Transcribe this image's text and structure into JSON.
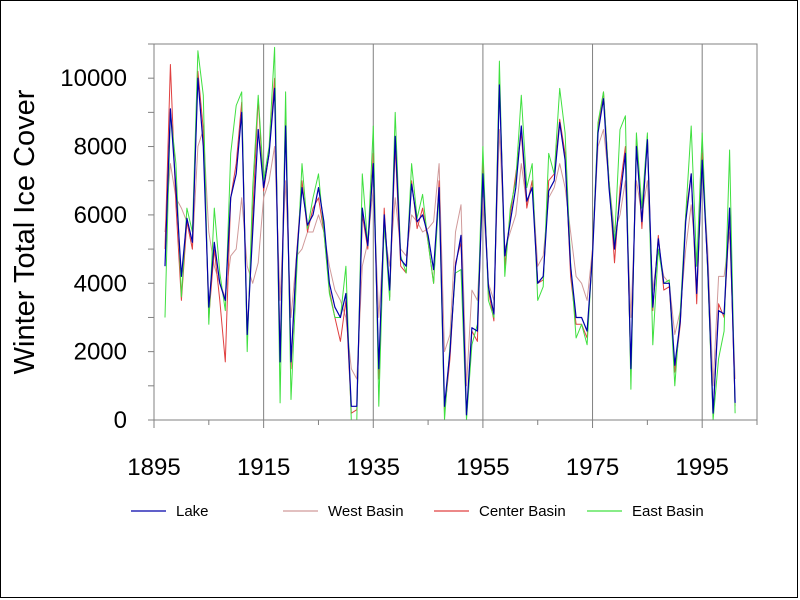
{
  "chart_data": {
    "type": "line",
    "title": "",
    "xlabel": "",
    "ylabel": "Winter Total Ice Cover",
    "xlim": [
      1895,
      2005
    ],
    "ylim": [
      0,
      11000
    ],
    "x_ticks": [
      "1895",
      "1915",
      "1935",
      "1955",
      "1975",
      "1995"
    ],
    "y_ticks": [
      "0",
      "2000",
      "4000",
      "6000",
      "8000",
      "10000"
    ],
    "grid": "vertical lines only",
    "legend_position": "bottom",
    "colors": {
      "Lake": "#0000aa",
      "West Basin": "#d09a9a",
      "Center Basin": "#e04040",
      "East Basin": "#40e040"
    },
    "x": [
      1897,
      1898,
      1899,
      1900,
      1901,
      1902,
      1903,
      1904,
      1905,
      1906,
      1907,
      1908,
      1909,
      1910,
      1911,
      1912,
      1913,
      1914,
      1915,
      1916,
      1917,
      1918,
      1919,
      1920,
      1921,
      1922,
      1923,
      1924,
      1925,
      1926,
      1927,
      1928,
      1929,
      1930,
      1931,
      1932,
      1933,
      1934,
      1935,
      1936,
      1937,
      1938,
      1939,
      1940,
      1941,
      1942,
      1943,
      1944,
      1945,
      1946,
      1947,
      1948,
      1949,
      1950,
      1951,
      1952,
      1953,
      1954,
      1955,
      1956,
      1957,
      1958,
      1959,
      1960,
      1961,
      1962,
      1963,
      1964,
      1965,
      1966,
      1967,
      1968,
      1969,
      1970,
      1971,
      1972,
      1973,
      1974,
      1975,
      1976,
      1977,
      1978,
      1979,
      1980,
      1981,
      1982,
      1983,
      1984,
      1985,
      1986,
      1987,
      1988,
      1989,
      1990,
      1991,
      1992,
      1993,
      1994,
      1995,
      1996,
      1997,
      1998,
      1999,
      2000,
      2001
    ],
    "series": [
      {
        "name": "Lake",
        "values": [
          4500,
          9100,
          6800,
          4200,
          5900,
          5200,
          10000,
          8000,
          3300,
          5200,
          4000,
          3500,
          6500,
          7200,
          9000,
          2500,
          5500,
          8500,
          6800,
          7800,
          9700,
          1700,
          8600,
          1700,
          4700,
          6800,
          5700,
          6000,
          6800,
          5800,
          4000,
          3300,
          3000,
          3700,
          400,
          400,
          6200,
          5100,
          7500,
          1500,
          6000,
          3800,
          8300,
          4700,
          4500,
          6900,
          5800,
          6000,
          5400,
          4400,
          6800,
          400,
          2000,
          4500,
          5400,
          150,
          2700,
          2600,
          7200,
          3900,
          3100,
          9800,
          4800,
          5800,
          6800,
          8600,
          6400,
          6800,
          4000,
          4200,
          6700,
          7000,
          8700,
          7600,
          4500,
          3000,
          3000,
          2600,
          4800,
          8400,
          9400,
          6800,
          5000,
          6500,
          7800,
          1500,
          8000,
          5800,
          8200,
          3300,
          5300,
          4000,
          4000,
          1600,
          2900,
          5800,
          7200,
          3700,
          7600,
          4500,
          200,
          3200,
          3100,
          6200,
          500
        ]
      },
      {
        "name": "West Basin",
        "values": [
          5500,
          7500,
          6500,
          6200,
          5800,
          5000,
          8000,
          8500,
          5500,
          4500,
          4000,
          3600,
          4800,
          5000,
          6500,
          4500,
          4000,
          4600,
          6500,
          7000,
          8000,
          3500,
          7000,
          3000,
          4800,
          5000,
          5500,
          5500,
          6000,
          5500,
          4500,
          3800,
          3500,
          3000,
          1500,
          1200,
          4500,
          5200,
          6800,
          3000,
          5500,
          4500,
          6500,
          5000,
          4800,
          6000,
          5800,
          5500,
          5600,
          5800,
          7500,
          2000,
          2500,
          5500,
          6300,
          1000,
          3800,
          3500,
          6500,
          4000,
          3500,
          8500,
          5000,
          5500,
          6000,
          7500,
          6300,
          7000,
          4500,
          4800,
          6500,
          6800,
          7500,
          6800,
          5500,
          4200,
          4000,
          3500,
          5000,
          8000,
          8500,
          7000,
          5500,
          6000,
          7000,
          3000,
          7000,
          6000,
          7000,
          3800,
          5000,
          4200,
          4000,
          2500,
          3200,
          5000,
          6300,
          4500,
          7500,
          5000,
          1000,
          4200,
          4200,
          5500,
          1200
        ]
      },
      {
        "name": "Center Basin",
        "values": [
          5000,
          10400,
          6300,
          3500,
          5800,
          5000,
          10200,
          8500,
          3000,
          5000,
          3500,
          1700,
          6500,
          7500,
          9300,
          2400,
          6000,
          9400,
          6700,
          7800,
          10000,
          1800,
          9000,
          1500,
          4800,
          7000,
          5500,
          6200,
          6500,
          5500,
          3800,
          3000,
          2300,
          3500,
          200,
          300,
          6000,
          5000,
          7800,
          1200,
          6200,
          3600,
          8000,
          4500,
          4300,
          7000,
          5600,
          6200,
          5200,
          4000,
          7000,
          200,
          1800,
          4600,
          5200,
          100,
          2600,
          2300,
          7500,
          3800,
          2900,
          10000,
          4500,
          6000,
          7200,
          8400,
          6200,
          7000,
          4000,
          4100,
          7000,
          7200,
          8800,
          7800,
          4200,
          2800,
          2800,
          2400,
          5000,
          8500,
          9600,
          7000,
          4600,
          6800,
          8000,
          1300,
          8200,
          5600,
          8300,
          3200,
          5400,
          3800,
          3900,
          1400,
          2800,
          6000,
          7200,
          3400,
          7800,
          4400,
          100,
          3400,
          3000,
          6000,
          400
        ]
      },
      {
        "name": "East Basin",
        "values": [
          3000,
          9000,
          7500,
          3600,
          6200,
          5500,
          10800,
          9500,
          2800,
          6200,
          4300,
          3200,
          7800,
          9200,
          9600,
          2000,
          6800,
          9500,
          7000,
          8000,
          10900,
          500,
          9600,
          600,
          4200,
          7500,
          5600,
          6500,
          7200,
          5500,
          3700,
          3000,
          3000,
          4500,
          0,
          0,
          7200,
          5100,
          8600,
          400,
          5800,
          3500,
          9000,
          4800,
          4300,
          7500,
          5900,
          6600,
          5200,
          4000,
          6600,
          0,
          2200,
          4300,
          4400,
          0,
          2200,
          2800,
          8000,
          3500,
          3000,
          10500,
          4200,
          6200,
          7000,
          9500,
          6800,
          7500,
          3500,
          3900,
          7800,
          7200,
          9700,
          8400,
          4600,
          2400,
          2800,
          2200,
          4900,
          8700,
          9600,
          7000,
          5200,
          8500,
          8900,
          900,
          8400,
          6200,
          8400,
          2200,
          5000,
          4000,
          4100,
          1000,
          3200,
          6000,
          8600,
          4500,
          8400,
          4300,
          0,
          1800,
          2600,
          7900,
          200
        ]
      }
    ]
  }
}
